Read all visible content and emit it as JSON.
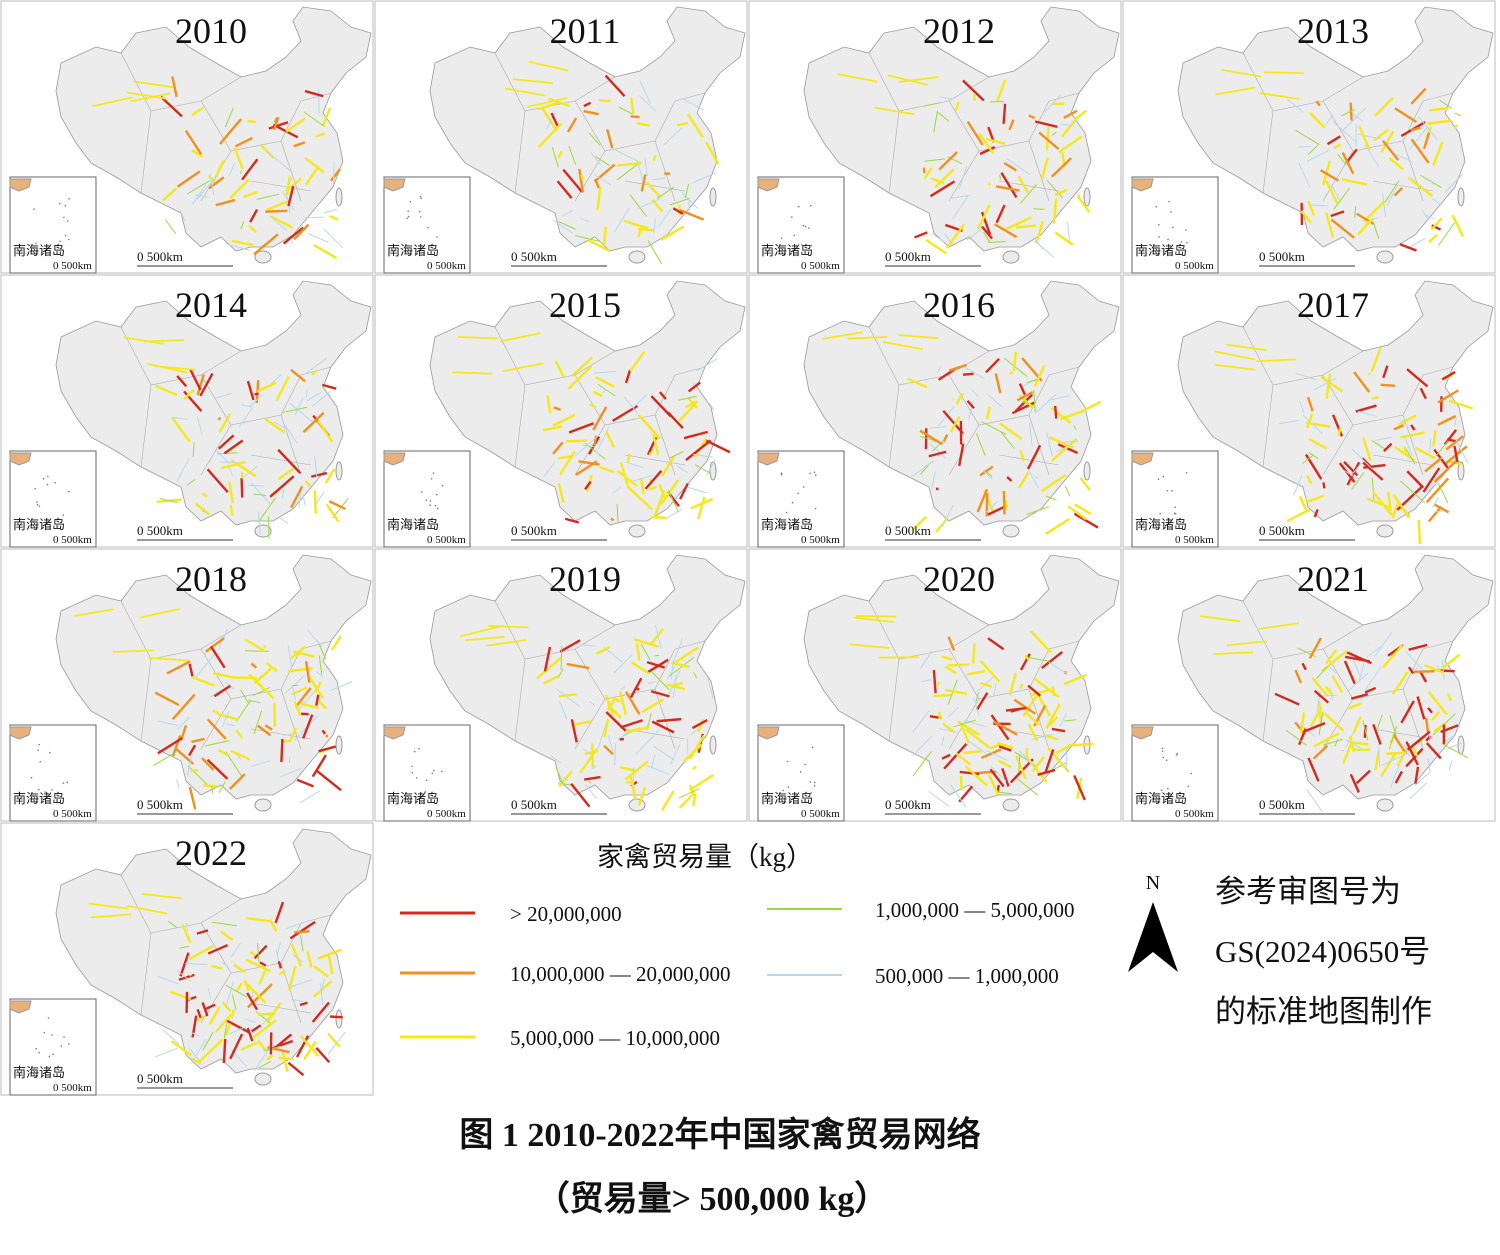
{
  "panels": [
    {
      "year": "2010"
    },
    {
      "year": "2011"
    },
    {
      "year": "2012"
    },
    {
      "year": "2013"
    },
    {
      "year": "2014"
    },
    {
      "year": "2015"
    },
    {
      "year": "2016"
    },
    {
      "year": "2017"
    },
    {
      "year": "2018"
    },
    {
      "year": "2019"
    },
    {
      "year": "2020"
    },
    {
      "year": "2021"
    },
    {
      "year": "2022"
    }
  ],
  "inset_label": "南海诸岛",
  "inset_scale": "0 500km",
  "scale_bar": "0 500km",
  "legend": {
    "title": "家禽贸易量（kg）",
    "items": [
      {
        "label": "> 20,000,000",
        "color": "#d42a1e"
      },
      {
        "label": "10,000,000 — 20,000,000",
        "color": "#f0901e"
      },
      {
        "label": "5,000,000 — 10,000,000",
        "color": "#f5e81a"
      },
      {
        "label": "1,000,000 — 5,000,000",
        "color": "#9bd93a"
      },
      {
        "label": "500,000 — 1,000,000",
        "color": "#b5d8ee"
      }
    ]
  },
  "north": "N",
  "note": [
    "参考审图号为",
    "GS(2024)0650号",
    "的标准地图制作"
  ],
  "caption": [
    "图 1 2010-2022年中国家禽贸易网络",
    "（贸易量> 500,000 kg）"
  ]
}
